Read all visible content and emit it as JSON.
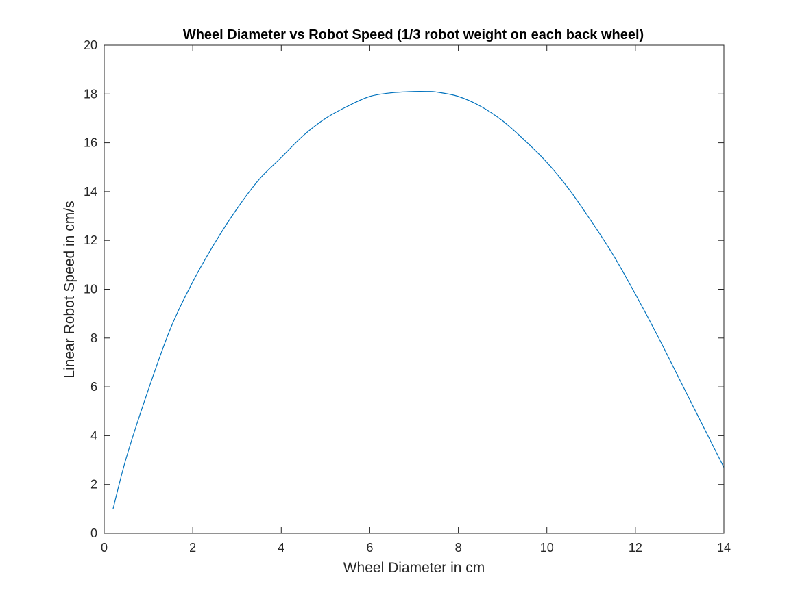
{
  "chart_data": {
    "type": "line",
    "title": "Wheel Diameter vs Robot Speed (1/3 robot weight on each back wheel)",
    "xlabel": "Wheel Diameter in cm",
    "ylabel": "Linear Robot Speed in cm/s",
    "xlim": [
      0,
      14
    ],
    "ylim": [
      0,
      20
    ],
    "xticks": [
      0,
      2,
      4,
      6,
      8,
      10,
      12,
      14
    ],
    "yticks": [
      0,
      2,
      4,
      6,
      8,
      10,
      12,
      14,
      16,
      18,
      20
    ],
    "grid": false,
    "legend": "none",
    "series": [
      {
        "color": "#0072bd",
        "x": [
          0.2,
          0.5,
          1.0,
          1.5,
          2.0,
          2.5,
          3.0,
          3.5,
          4.0,
          4.5,
          5.0,
          5.5,
          6.0,
          6.5,
          7.0,
          7.3,
          7.5,
          8.0,
          8.5,
          9.0,
          9.5,
          10.0,
          10.5,
          11.0,
          11.5,
          12.0,
          12.5,
          13.0,
          13.5,
          14.0
        ],
        "y": [
          1.0,
          3.1,
          5.9,
          8.4,
          10.3,
          11.9,
          13.3,
          14.5,
          15.4,
          16.3,
          17.0,
          17.5,
          17.9,
          18.05,
          18.1,
          18.1,
          18.08,
          17.9,
          17.5,
          16.9,
          16.1,
          15.2,
          14.1,
          12.8,
          11.4,
          9.8,
          8.1,
          6.3,
          4.5,
          2.7
        ]
      }
    ]
  }
}
